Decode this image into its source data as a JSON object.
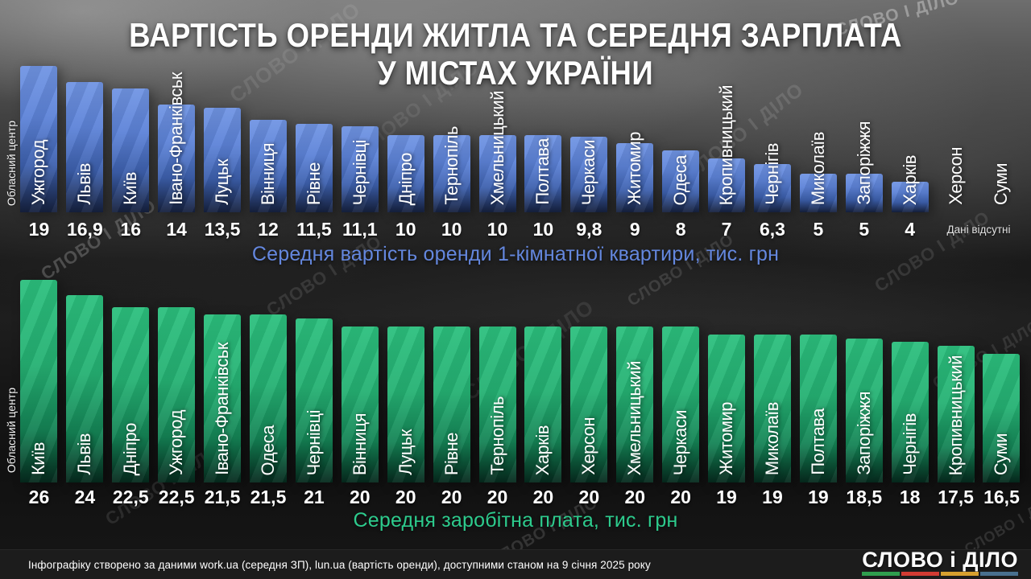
{
  "title": {
    "line1": "ВАРТІСТЬ ОРЕНДИ ЖИТЛА ТА СЕРЕДНЯ ЗАРПЛАТА",
    "line2": "У МІСТАХ УКРАЇНИ"
  },
  "watermark_text": "СЛОВО І ДІЛО",
  "side_label": "Обласний центр",
  "chart_data": [
    {
      "id": "rent",
      "type": "bar",
      "title": "Середня вартість оренди 1-кімнатної квартири, тис. грн",
      "title_color": "#6487de",
      "bar_color": "#5d83d8",
      "unit": "тис. грн",
      "categories": [
        "Ужгород",
        "Львів",
        "Київ",
        "Івано-Франківськ",
        "Луцьк",
        "Вінниця",
        "Рівне",
        "Чернівці",
        "Дніпро",
        "Тернопіль",
        "Хмельницький",
        "Полтава",
        "Черкаси",
        "Житомир",
        "Одеса",
        "Кропивницький",
        "Чернігів",
        "Миколаїв",
        "Запоріжжя",
        "Харків",
        "Херсон",
        "Суми"
      ],
      "values": [
        19,
        16.9,
        16,
        14,
        13.5,
        12,
        11.5,
        11.1,
        10,
        10,
        10,
        10,
        9.8,
        9,
        8,
        7,
        6.3,
        5,
        5,
        4,
        null,
        null
      ],
      "display_values": [
        "19",
        "16,9",
        "16",
        "14",
        "13,5",
        "12",
        "11,5",
        "11,1",
        "10",
        "10",
        "10",
        "10",
        "9,8",
        "9",
        "8",
        "7",
        "6,3",
        "5",
        "5",
        "4",
        "",
        ""
      ],
      "no_data_cities": [
        "Херсон",
        "Суми"
      ],
      "no_data_label": "Дані відсутні"
    },
    {
      "id": "salary",
      "type": "bar",
      "title": "Середня заробітна плата, тис. грн",
      "title_color": "#2dcb8d",
      "bar_color": "#25b173",
      "unit": "тис. грн",
      "categories": [
        "Київ",
        "Львів",
        "Дніпро",
        "Ужгород",
        "Івано-Франківськ",
        "Одеса",
        "Чернівці",
        "Вінниця",
        "Луцьк",
        "Рівне",
        "Тернопіль",
        "Харків",
        "Херсон",
        "Хмельницький",
        "Черкаси",
        "Житомир",
        "Миколаїв",
        "Полтава",
        "Запоріжжя",
        "Чернігів",
        "Кропивницький",
        "Суми"
      ],
      "values": [
        26,
        24,
        22.5,
        22.5,
        21.5,
        21.5,
        21,
        20,
        20,
        20,
        20,
        20,
        20,
        20,
        20,
        19,
        19,
        19,
        18.5,
        18,
        17.5,
        16.5
      ],
      "display_values": [
        "26",
        "24",
        "22,5",
        "22,5",
        "21,5",
        "21,5",
        "21",
        "20",
        "20",
        "20",
        "20",
        "20",
        "20",
        "20",
        "20",
        "19",
        "19",
        "19",
        "18,5",
        "18",
        "17,5",
        "16,5"
      ]
    }
  ],
  "footer": {
    "source": "Інфографіку створено за даними work.ua (середня ЗП), lun.ua (вартість оренди), доступними станом на 9 січня 2025 року",
    "logo": "СЛОВО і ДІЛО",
    "logo_colors": [
      "#2f9e4e",
      "#d23b33",
      "#d7a02f",
      "#49708f"
    ]
  }
}
